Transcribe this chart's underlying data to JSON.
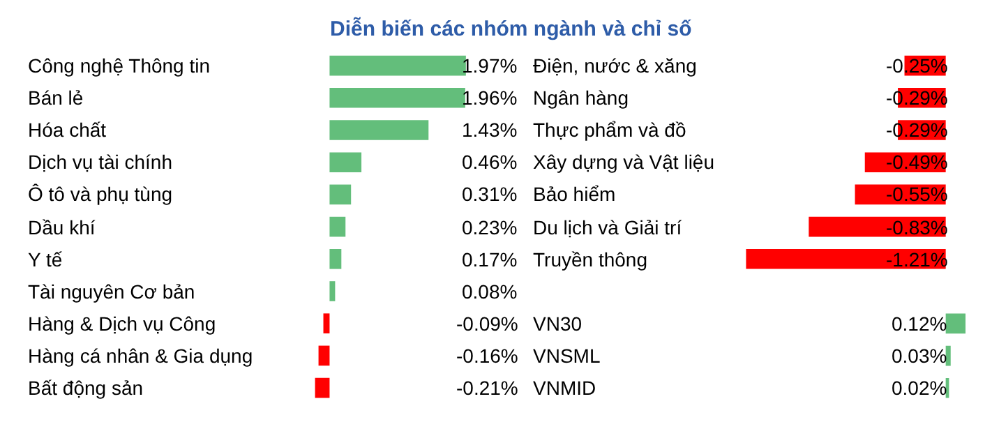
{
  "chart_data": [
    {
      "type": "bar",
      "orientation": "horizontal",
      "title": "Diễn biến các nhóm ngành và chỉ số",
      "categories": [
        "Công nghệ Thông tin",
        "Bán lẻ",
        "Hóa chất",
        "Dịch vụ tài chính",
        "Ô tô và phụ tùng",
        "Dầu khí",
        "Y tế",
        "Tài nguyên Cơ bản",
        "Hàng & Dịch vụ Công",
        "Hàng cá nhân & Gia dụng",
        "Bất động sản"
      ],
      "values": [
        1.97,
        1.96,
        1.43,
        0.46,
        0.31,
        0.23,
        0.17,
        0.08,
        -0.09,
        -0.16,
        -0.21
      ],
      "colors": [
        "#63be7b",
        "#63be7b",
        "#63be7b",
        "#63be7b",
        "#63be7b",
        "#63be7b",
        "#63be7b",
        "#63be7b",
        "#ff0000",
        "#ff0000",
        "#ff0000"
      ],
      "value_labels": [
        "1.97%",
        "1.96%",
        "1.43%",
        "0.46%",
        "0.31%",
        "0.23%",
        "0.17%",
        "0.08%",
        "-0.09%",
        "-0.16%",
        "-0.21%"
      ]
    },
    {
      "type": "bar",
      "orientation": "horizontal",
      "categories": [
        "Điện, nước & xăng",
        "Ngân hàng",
        "Thực phẩm và đồ",
        "Xây dựng và Vật liệu",
        "Bảo hiểm",
        "Du lịch và Giải trí",
        "Truyền thông"
      ],
      "values": [
        -0.25,
        -0.29,
        -0.29,
        -0.49,
        -0.55,
        -0.83,
        -1.21
      ],
      "colors": [
        "#ff0000",
        "#ff0000",
        "#ff0000",
        "#ff0000",
        "#ff0000",
        "#ff0000",
        "#ff0000"
      ],
      "value_labels": [
        "-0.25%",
        "-0.29%",
        "-0.29%",
        "-0.49%",
        "-0.55%",
        "-0.83%",
        "-1.21%"
      ]
    },
    {
      "type": "bar",
      "orientation": "horizontal",
      "categories": [
        "VN30",
        "VNSML",
        "VNMID"
      ],
      "values": [
        0.12,
        0.03,
        0.02
      ],
      "colors": [
        "#63be7b",
        "#63be7b",
        "#63be7b"
      ],
      "value_labels": [
        "0.12%",
        "0.03%",
        "0.02%"
      ]
    }
  ]
}
